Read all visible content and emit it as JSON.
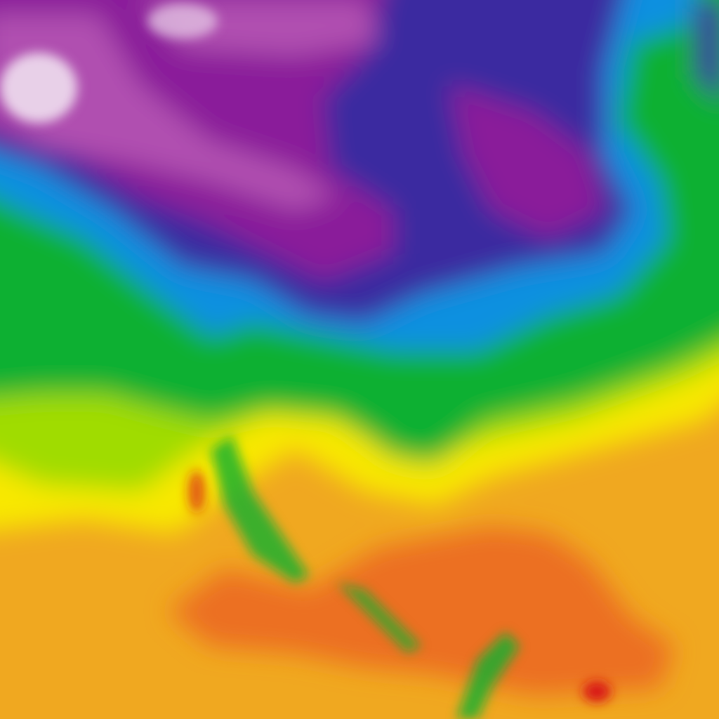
{
  "map": {
    "kind": "temperature-heatmap",
    "palette": {
      "coldest": "#e8d0e8",
      "very_cold": "#b050b0",
      "cold": "#8a1a9a",
      "cool_deep": "#3a2aa0",
      "cool": "#1090e0",
      "mild": "#10b030",
      "warm_mild": "#a0dc00",
      "warm": "#f8e800",
      "hot": "#f0a820",
      "very_hot": "#ec7020",
      "extreme": "#d81818"
    }
  }
}
